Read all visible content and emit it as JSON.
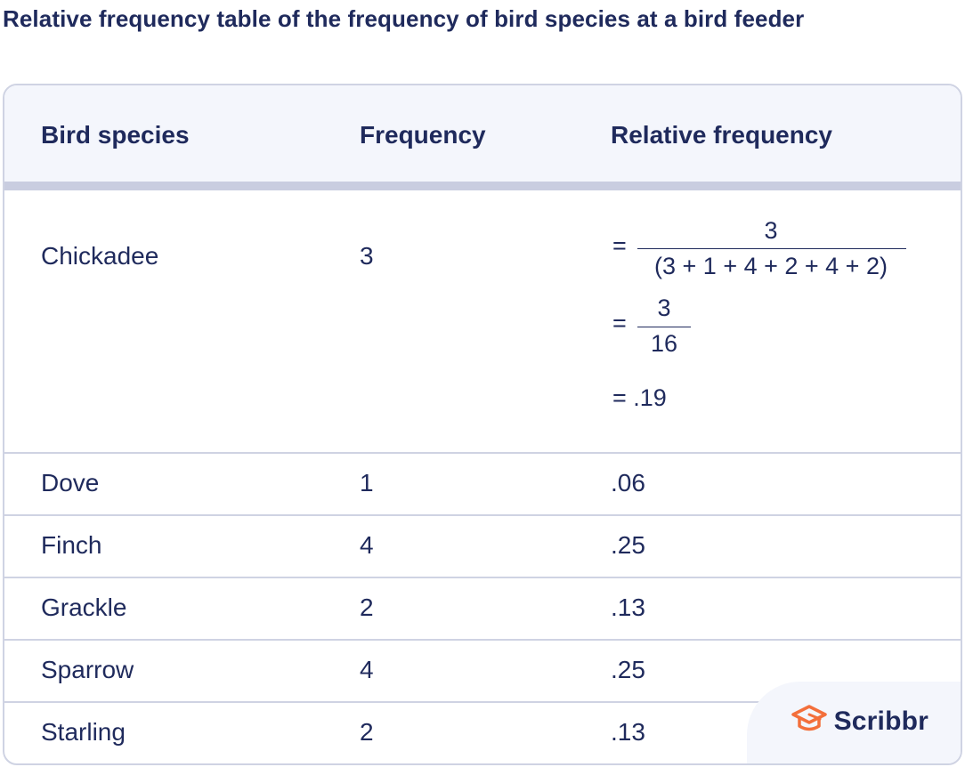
{
  "title": "Relative frequency table of the frequency of bird species at a bird feeder",
  "table": {
    "headers": [
      "Bird species",
      "Frequency",
      "Relative frequency"
    ],
    "chickadee": {
      "species": "Chickadee",
      "frequency": "3",
      "eq1": "=",
      "numerator1": "3",
      "denominator1": "(3 + 1 + 4 + 2 + 4 + 2)",
      "eq2": "=",
      "numerator2": "3",
      "denominator2": "16",
      "result": "= .19"
    },
    "rows": [
      {
        "species": "Dove",
        "frequency": "1",
        "relative": ".06"
      },
      {
        "species": "Finch",
        "frequency": "4",
        "relative": ".25"
      },
      {
        "species": "Grackle",
        "frequency": "2",
        "relative": ".13"
      },
      {
        "species": "Sparrow",
        "frequency": "4",
        "relative": ".25"
      },
      {
        "species": "Starling",
        "frequency": "2",
        "relative": ".13"
      }
    ]
  },
  "logo": {
    "text": "Scribbr",
    "icon": "graduation-cap-icon",
    "accent_color": "#f36f3b"
  }
}
